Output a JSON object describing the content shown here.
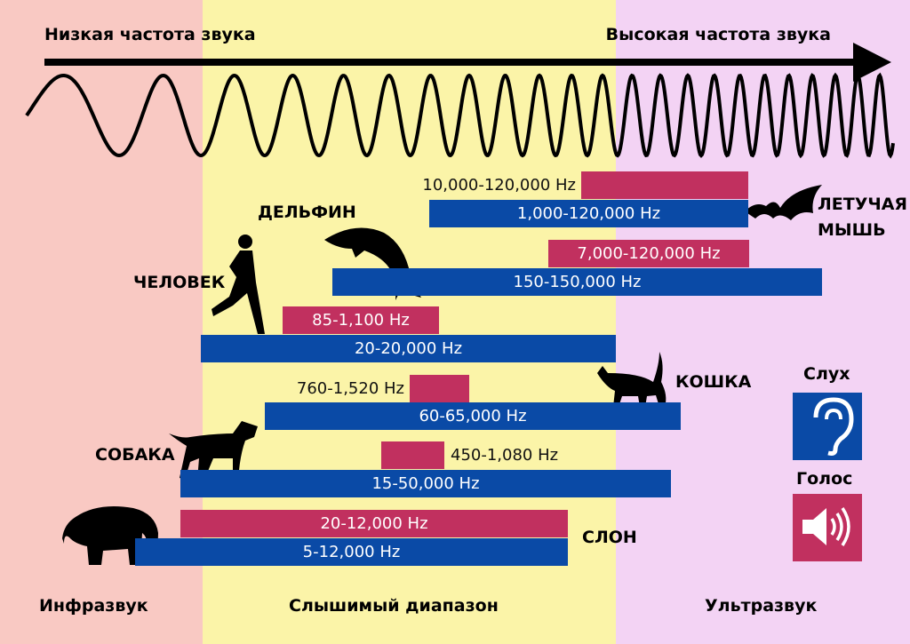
{
  "header": {
    "left": "Низкая частота звука",
    "right": "Высокая частота звука"
  },
  "animals": [
    {
      "name": "ЛЕТУЧАЯ МЫШЬ",
      "voice": "10,000-120,000 Hz",
      "hearing": "1,000-120,000 Hz"
    },
    {
      "name": "ДЕЛЬФИН",
      "voice": "7,000-120,000 Hz",
      "hearing": "150-150,000 Hz"
    },
    {
      "name": "ЧЕЛОВЕК",
      "voice": "85-1,100 Hz",
      "hearing": "20-20,000 Hz"
    },
    {
      "name": "КОШКА",
      "voice": "760-1,520 Hz",
      "hearing": "60-65,000 Hz"
    },
    {
      "name": "СОБАКА",
      "voice": "450-1,080 Hz",
      "hearing": "15-50,000 Hz"
    },
    {
      "name": "СЛОН",
      "voice": "20-12,000 Hz",
      "hearing": "5-12,000 Hz"
    }
  ],
  "legend": {
    "hearing": "Слух",
    "voice": "Голос"
  },
  "zones": [
    "Инфразвук",
    "Слышимый диапазон",
    "Ультразвук"
  ]
}
